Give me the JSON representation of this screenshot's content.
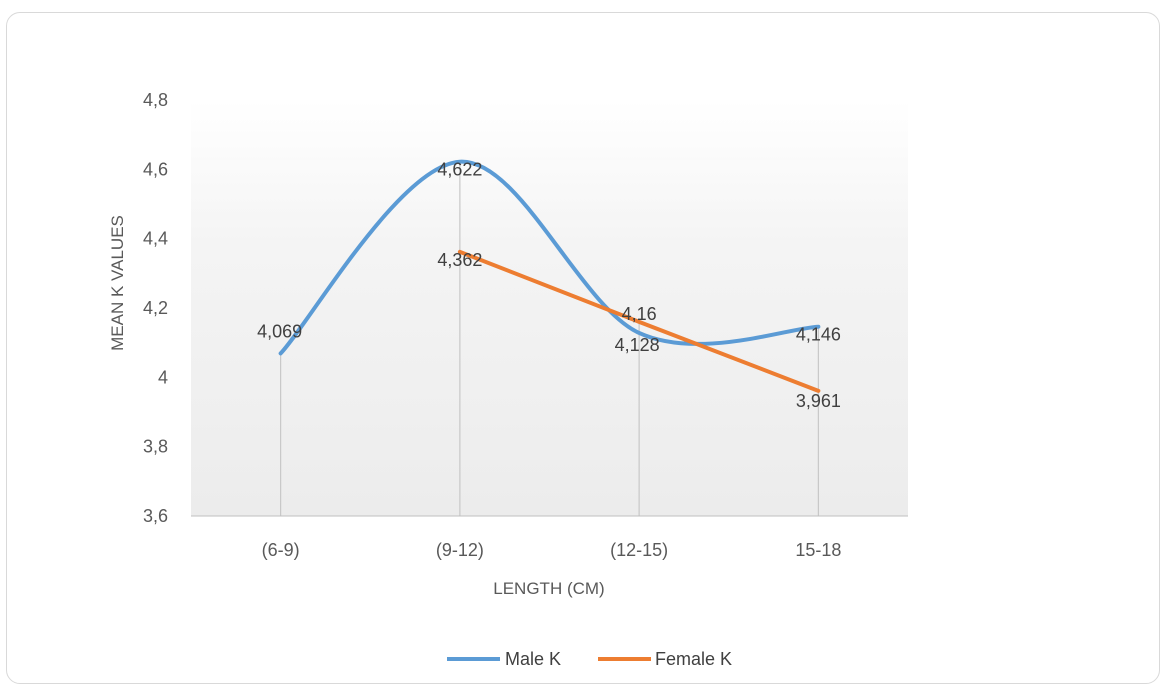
{
  "chart_data": {
    "type": "line",
    "categories": [
      "(6-9)",
      "(9-12)",
      "(12-15)",
      "15-18"
    ],
    "series": [
      {
        "name": "Male K",
        "values": [
          4.069,
          4.622,
          4.128,
          4.146
        ],
        "color": "#5b9bd5",
        "smooth": true,
        "labels": [
          "4,069",
          "4,622",
          "4,128",
          "4,146"
        ]
      },
      {
        "name": "Female K",
        "values": [
          null,
          4.362,
          4.16,
          3.961
        ],
        "color": "#ed7d31",
        "smooth": false,
        "labels": [
          "",
          "4,362",
          "4,16",
          "3,961"
        ]
      }
    ],
    "title": "",
    "xlabel": "LENGTH (CM)",
    "ylabel": "MEAN K VALUES",
    "ylim": [
      3.6,
      4.8
    ],
    "yticks": [
      3.6,
      3.8,
      4.0,
      4.2,
      4.4,
      4.6,
      4.8
    ],
    "ytick_labels": [
      "3,6",
      "3,8",
      "4",
      "4,2",
      "4,4",
      "4,6",
      "4,8"
    ],
    "grid": false,
    "drop_lines": true,
    "plot_area_color": "#f2f2f2",
    "legend_position": "bottom"
  }
}
